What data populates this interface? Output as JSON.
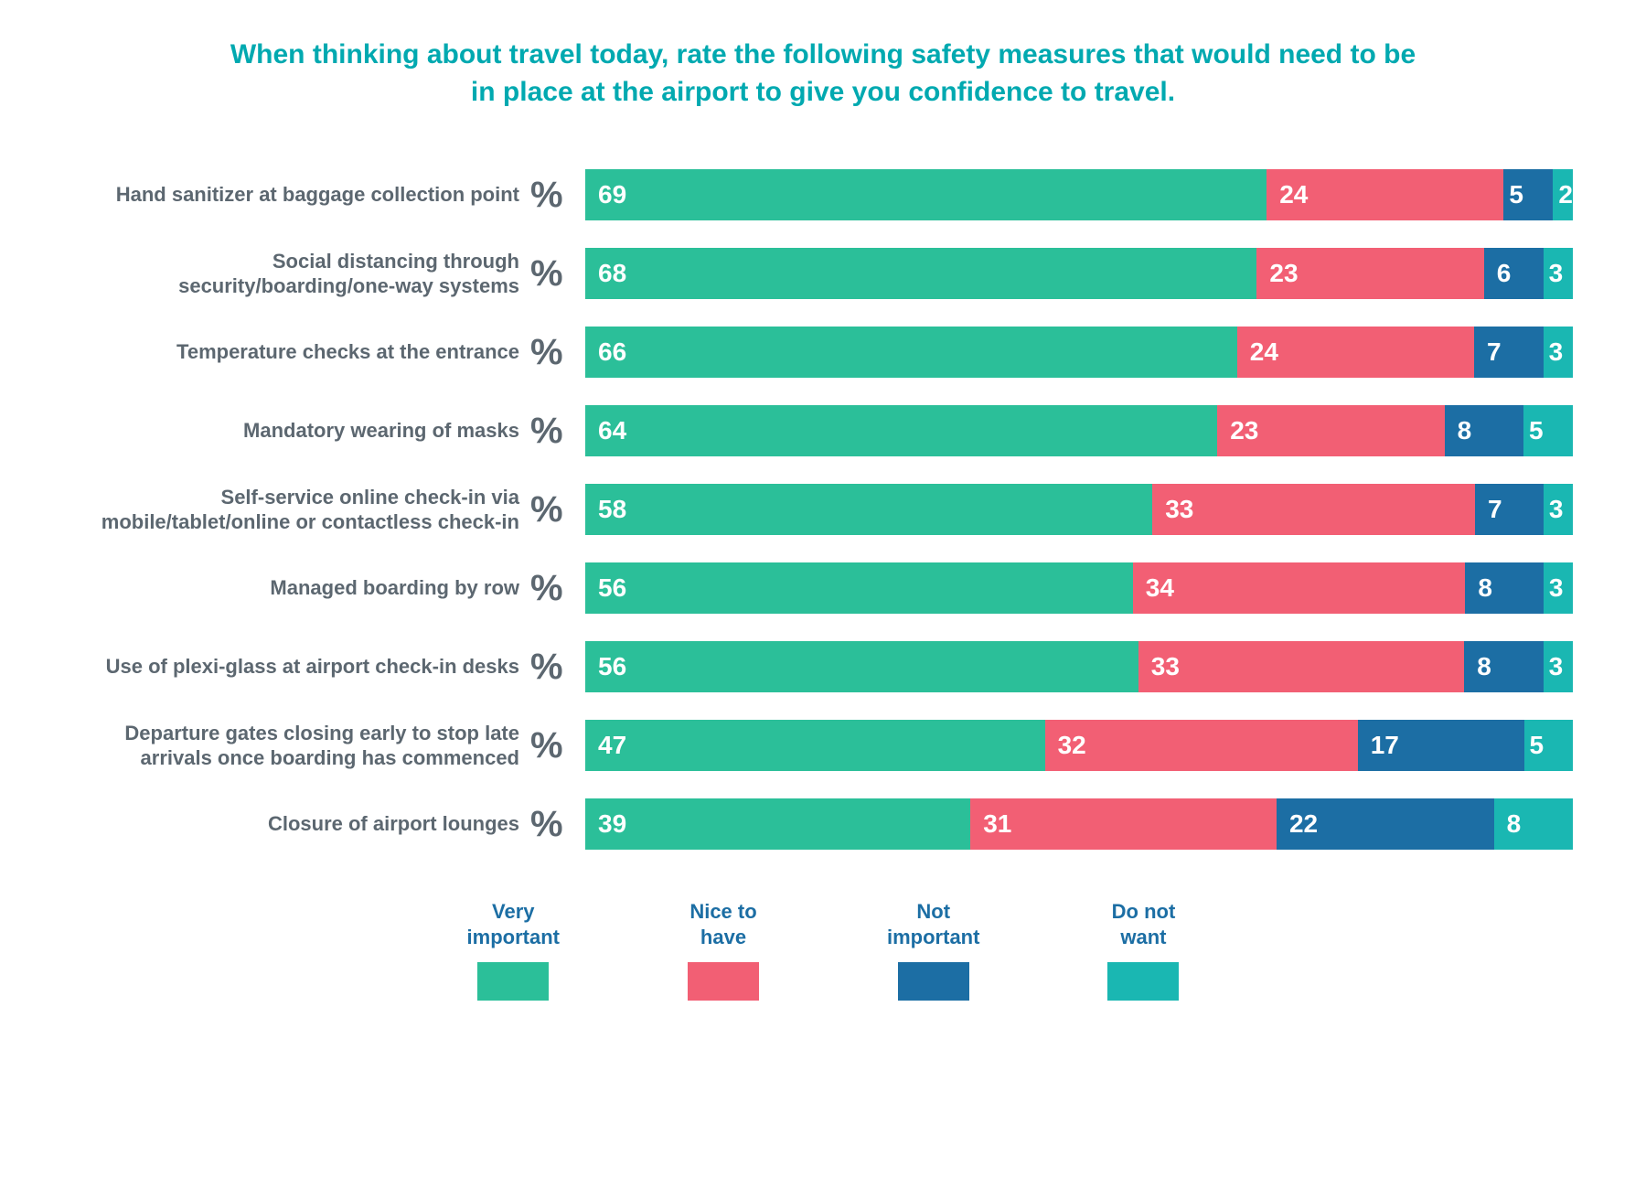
{
  "title": "When thinking about travel today, rate the following safety measures that would need to be in place at the airport to give you confidence to travel.",
  "title_color": "#00a9b0",
  "title_fontsize": 30,
  "label_color": "#5c6770",
  "label_fontsize": 22,
  "pct_symbol": "%",
  "pct_symbol_color": "#5c6770",
  "pct_symbol_fontsize": 40,
  "value_fontsize": 28,
  "value_color": "#ffffff",
  "background_color": "#ffffff",
  "series": [
    {
      "key": "very_important",
      "label": "Very important",
      "color": "#2bbf99"
    },
    {
      "key": "nice_to_have",
      "label": "Nice to have",
      "color": "#f25f74"
    },
    {
      "key": "not_important",
      "label": "Not important",
      "color": "#1c6ea4"
    },
    {
      "key": "do_not_want",
      "label": "Do not want",
      "color": "#1ab7b2"
    }
  ],
  "items": [
    {
      "label": "Hand sanitizer at baggage collection point",
      "values": [
        69,
        24,
        5,
        2
      ]
    },
    {
      "label": "Social distancing through security/boarding/one-way systems",
      "values": [
        68,
        23,
        6,
        3
      ]
    },
    {
      "label": "Temperature checks at the entrance",
      "values": [
        66,
        24,
        7,
        3
      ]
    },
    {
      "label": "Mandatory wearing of masks",
      "values": [
        64,
        23,
        8,
        5
      ]
    },
    {
      "label": "Self-service online check-in via mobile/tablet/online or contactless check-in",
      "values": [
        58,
        33,
        7,
        3
      ]
    },
    {
      "label": "Managed boarding by row",
      "values": [
        56,
        34,
        8,
        3
      ]
    },
    {
      "label": "Use of plexi-glass at airport check-in desks",
      "values": [
        56,
        33,
        8,
        3
      ]
    },
    {
      "label": "Departure gates closing early to stop late arrivals once boarding has commenced",
      "values": [
        47,
        32,
        17,
        5
      ]
    },
    {
      "label": "Closure of airport lounges",
      "values": [
        39,
        31,
        22,
        8
      ]
    }
  ],
  "legend_label_color": "#1c6ea4",
  "legend_label_fontsize": 22
}
